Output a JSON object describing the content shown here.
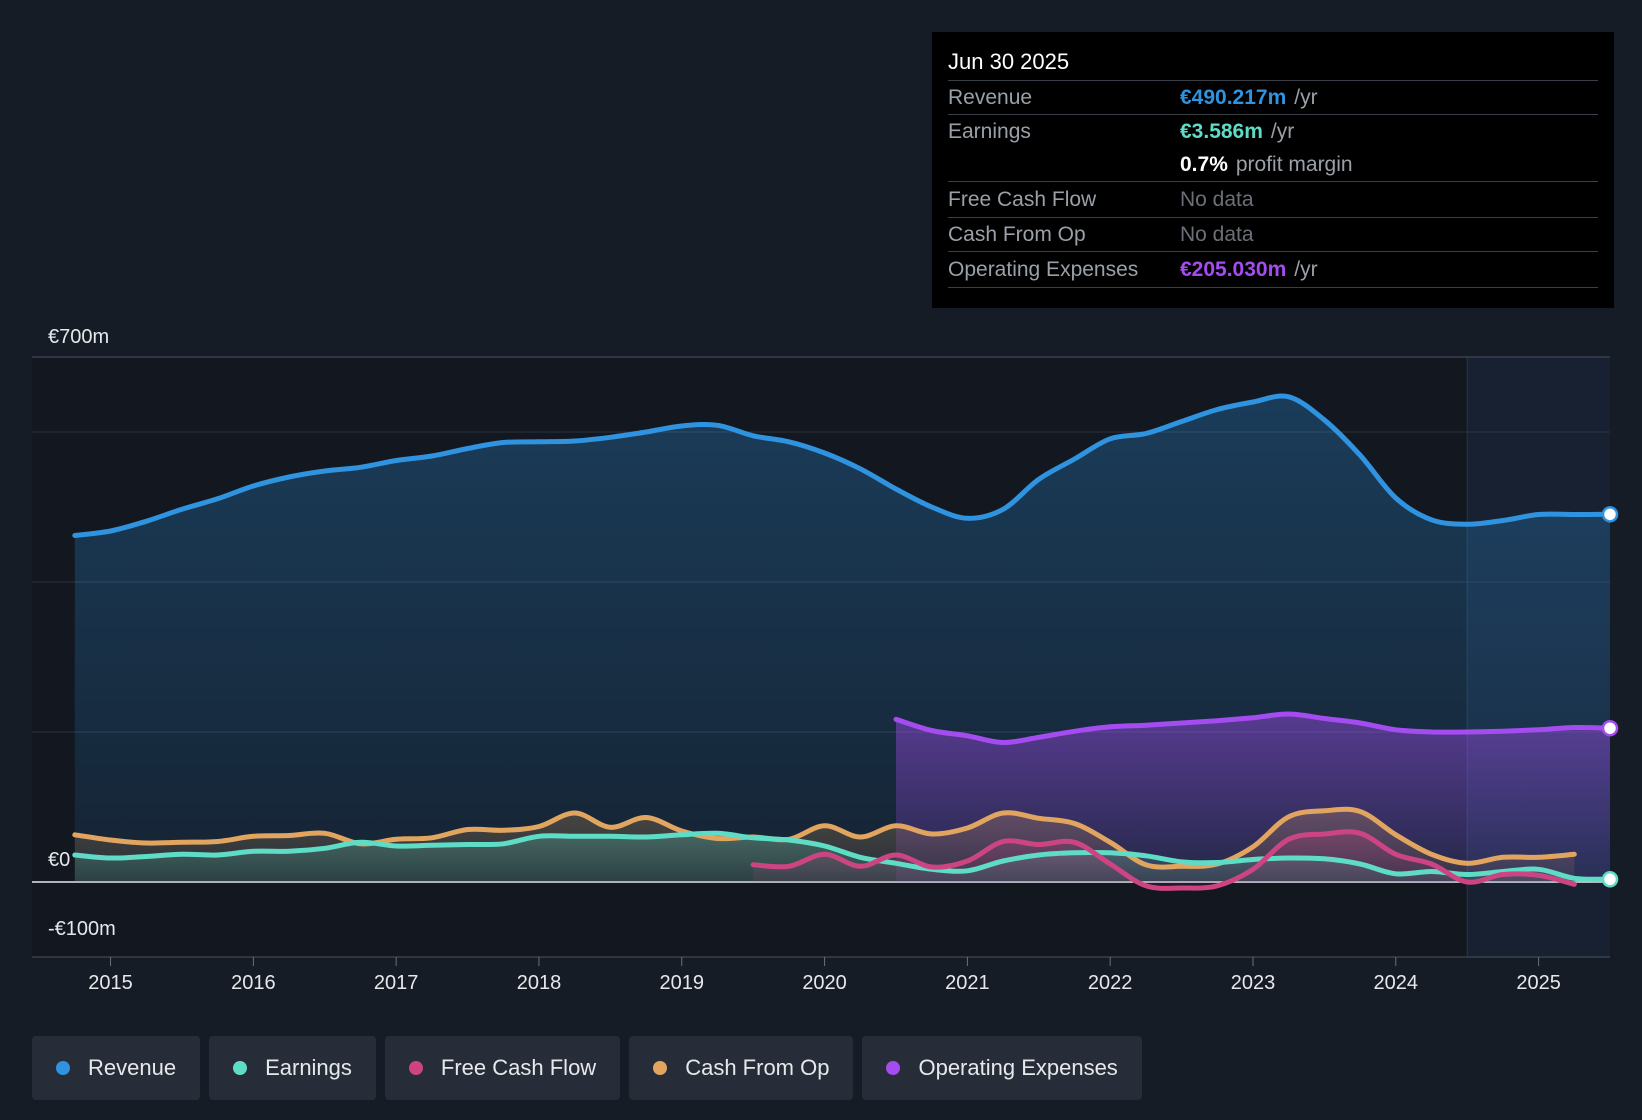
{
  "colors": {
    "revenue": "#2f93e0",
    "earnings": "#5fdcc6",
    "fcf": "#cc4582",
    "cfo": "#e2a55f",
    "opex": "#a54cf0"
  },
  "tooltip": {
    "date": "Jun 30 2025",
    "revenue_label": "Revenue",
    "revenue_value": "€490.217m",
    "earnings_label": "Earnings",
    "earnings_value": "€3.586m",
    "unit": "/yr",
    "profit_margin_value": "0.7%",
    "profit_margin_label": "profit margin",
    "fcf_label": "Free Cash Flow",
    "fcf_value": "No data",
    "cfo_label": "Cash From Op",
    "cfo_value": "No data",
    "opex_label": "Operating Expenses",
    "opex_value": "€205.030m"
  },
  "legend": {
    "revenue": "Revenue",
    "earnings": "Earnings",
    "fcf": "Free Cash Flow",
    "cfo": "Cash From Op",
    "opex": "Operating Expenses"
  },
  "chart_data": {
    "type": "area",
    "y_unit": "€m",
    "ylim": [
      -100,
      700
    ],
    "y_tick_labels": [
      {
        "value": 700,
        "label": "€700m"
      },
      {
        "value": 0,
        "label": "€0"
      },
      {
        "value": -100,
        "label": "-€100m"
      }
    ],
    "gridlines": [
      700,
      600,
      400,
      200,
      0,
      -100
    ],
    "xlim": [
      2014.45,
      2025.5
    ],
    "x_ticks": [
      2015,
      2016,
      2017,
      2018,
      2019,
      2020,
      2021,
      2022,
      2023,
      2024,
      2025
    ],
    "x_tick_labels": [
      "2015",
      "2016",
      "2017",
      "2018",
      "2019",
      "2020",
      "2021",
      "2022",
      "2023",
      "2024",
      "2025"
    ],
    "highlight_range": [
      2024.5,
      2025.5
    ],
    "series": [
      {
        "name": "Revenue",
        "key": "revenue",
        "filled": true,
        "end_marker": true,
        "x": [
          2014.75,
          2015.0,
          2015.25,
          2015.5,
          2015.75,
          2016.0,
          2016.25,
          2016.5,
          2016.75,
          2017.0,
          2017.25,
          2017.5,
          2017.75,
          2018.0,
          2018.25,
          2018.5,
          2018.75,
          2019.0,
          2019.25,
          2019.5,
          2019.75,
          2020.0,
          2020.25,
          2020.5,
          2020.75,
          2021.0,
          2021.25,
          2021.5,
          2021.75,
          2022.0,
          2022.25,
          2022.5,
          2022.75,
          2023.0,
          2023.25,
          2023.5,
          2023.75,
          2024.0,
          2024.25,
          2024.5,
          2024.75,
          2025.0,
          2025.25,
          2025.5
        ],
        "y": [
          462,
          468,
          481,
          497,
          511,
          528,
          540,
          548,
          553,
          562,
          568,
          578,
          586,
          587,
          588,
          593,
          600,
          608,
          609,
          595,
          587,
          572,
          551,
          524,
          500,
          485,
          497,
          537,
          564,
          591,
          598,
          614,
          630,
          640,
          647,
          616,
          569,
          512,
          483,
          477,
          482,
          490,
          490,
          490.217
        ]
      },
      {
        "name": "Earnings",
        "key": "earnings",
        "filled": true,
        "end_marker": true,
        "x": [
          2014.75,
          2015.0,
          2015.25,
          2015.5,
          2015.75,
          2016.0,
          2016.25,
          2016.5,
          2016.75,
          2017.0,
          2017.25,
          2017.5,
          2017.75,
          2018.0,
          2018.25,
          2018.5,
          2018.75,
          2019.0,
          2019.25,
          2019.5,
          2019.75,
          2020.0,
          2020.25,
          2020.5,
          2020.75,
          2021.0,
          2021.25,
          2021.5,
          2021.75,
          2022.0,
          2022.25,
          2022.5,
          2022.75,
          2023.0,
          2023.25,
          2023.5,
          2023.75,
          2024.0,
          2024.25,
          2024.5,
          2024.75,
          2025.0,
          2025.25,
          2025.5
        ],
        "y": [
          36,
          32,
          34,
          37,
          36,
          41,
          41,
          45,
          53,
          48,
          49,
          50,
          51,
          61,
          61,
          61,
          60,
          63,
          65,
          59,
          56,
          48,
          33,
          25,
          17,
          15,
          28,
          36,
          39,
          39,
          35,
          27,
          26,
          30,
          32,
          31,
          24,
          11,
          14,
          10,
          14,
          17,
          5,
          3.586
        ]
      },
      {
        "name": "Free Cash Flow",
        "key": "fcf",
        "filled": true,
        "end_marker": false,
        "x": [
          2019.5,
          2019.75,
          2020.0,
          2020.25,
          2020.5,
          2020.75,
          2021.0,
          2021.25,
          2021.5,
          2021.75,
          2022.0,
          2022.25,
          2022.5,
          2022.75,
          2023.0,
          2023.25,
          2023.5,
          2023.75,
          2024.0,
          2024.25,
          2024.5,
          2024.75,
          2025.0,
          2025.25
        ],
        "y": [
          23,
          21,
          37,
          21,
          36,
          20,
          28,
          54,
          50,
          53,
          24,
          -5,
          -8,
          -5,
          17,
          57,
          64,
          65,
          37,
          24,
          0,
          10,
          9,
          -3
        ]
      },
      {
        "name": "Cash From Op",
        "key": "cfo",
        "filled": true,
        "end_marker": false,
        "x": [
          2014.75,
          2015.0,
          2015.25,
          2015.5,
          2015.75,
          2016.0,
          2016.25,
          2016.5,
          2016.75,
          2017.0,
          2017.25,
          2017.5,
          2017.75,
          2018.0,
          2018.25,
          2018.5,
          2018.75,
          2019.0,
          2019.25,
          2019.5,
          2019.75,
          2020.0,
          2020.25,
          2020.5,
          2020.75,
          2021.0,
          2021.25,
          2021.5,
          2021.75,
          2022.0,
          2022.25,
          2022.5,
          2022.75,
          2023.0,
          2023.25,
          2023.5,
          2023.75,
          2024.0,
          2024.25,
          2024.5,
          2024.75,
          2025.0,
          2025.25
        ],
        "y": [
          63,
          56,
          52,
          53,
          54,
          61,
          62,
          65,
          51,
          57,
          59,
          70,
          69,
          74,
          92,
          73,
          86,
          68,
          58,
          60,
          57,
          75,
          60,
          75,
          64,
          72,
          92,
          85,
          78,
          53,
          23,
          21,
          24,
          47,
          87,
          95,
          94,
          63,
          37,
          25,
          33,
          33,
          37
        ]
      },
      {
        "name": "Operating Expenses",
        "key": "opex",
        "filled": true,
        "end_marker": true,
        "x": [
          2020.5,
          2020.75,
          2021.0,
          2021.25,
          2021.5,
          2021.75,
          2022.0,
          2022.25,
          2022.5,
          2022.75,
          2023.0,
          2023.25,
          2023.5,
          2023.75,
          2024.0,
          2024.25,
          2024.5,
          2024.75,
          2025.0,
          2025.25,
          2025.5
        ],
        "y": [
          217,
          202,
          195,
          186,
          193,
          201,
          207,
          209,
          212,
          215,
          219,
          224,
          218,
          212,
          203,
          200,
          200,
          201,
          203,
          206,
          205.03
        ]
      }
    ]
  }
}
